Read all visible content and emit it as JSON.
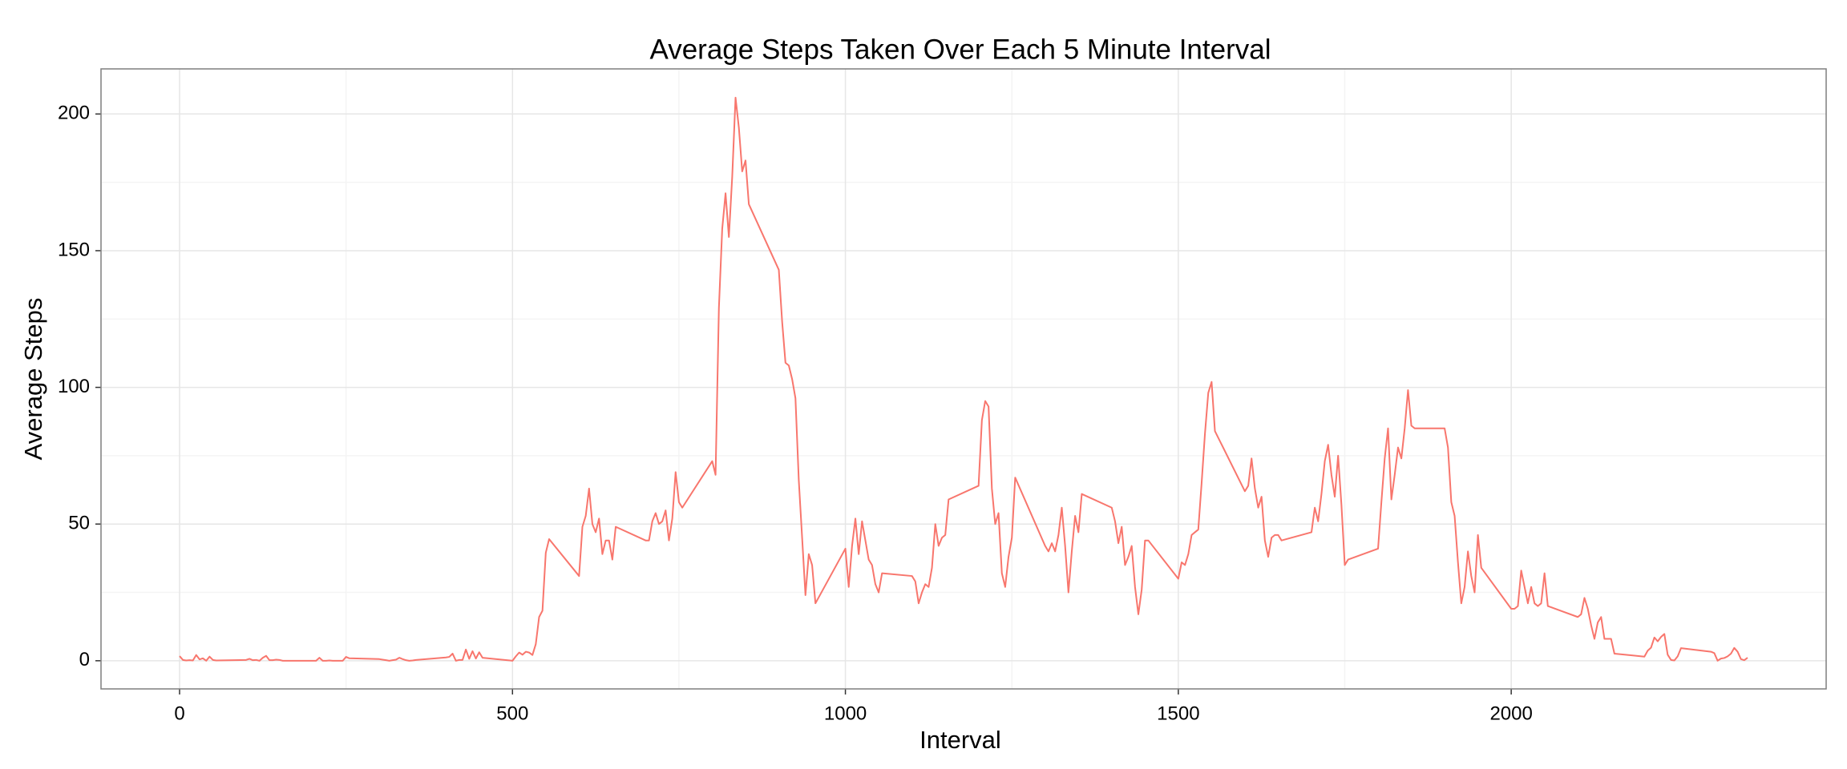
{
  "chart_data": {
    "type": "line",
    "title": "Average Steps Taken Over Each 5 Minute Interval",
    "xlabel": "Interval",
    "ylabel": "Average Steps",
    "x": [
      0,
      5,
      10,
      15,
      20,
      25,
      30,
      35,
      40,
      45,
      50,
      55,
      100,
      105,
      110,
      115,
      120,
      125,
      130,
      135,
      140,
      145,
      150,
      155,
      200,
      205,
      210,
      215,
      220,
      225,
      230,
      235,
      240,
      245,
      250,
      255,
      300,
      305,
      310,
      315,
      320,
      325,
      330,
      335,
      340,
      345,
      350,
      355,
      400,
      405,
      410,
      415,
      420,
      425,
      430,
      435,
      440,
      445,
      450,
      455,
      500,
      505,
      510,
      515,
      520,
      525,
      530,
      535,
      540,
      545,
      550,
      555,
      600,
      605,
      610,
      615,
      620,
      625,
      630,
      635,
      640,
      645,
      650,
      655,
      700,
      705,
      710,
      715,
      720,
      725,
      730,
      735,
      740,
      745,
      750,
      755,
      800,
      805,
      810,
      815,
      820,
      825,
      830,
      835,
      840,
      845,
      850,
      855,
      900,
      905,
      910,
      915,
      920,
      925,
      930,
      935,
      940,
      945,
      950,
      955,
      1000,
      1005,
      1010,
      1015,
      1020,
      1025,
      1030,
      1035,
      1040,
      1045,
      1050,
      1055,
      1100,
      1105,
      1110,
      1115,
      1120,
      1125,
      1130,
      1135,
      1140,
      1145,
      1150,
      1155,
      1200,
      1205,
      1210,
      1215,
      1220,
      1225,
      1230,
      1235,
      1240,
      1245,
      1250,
      1255,
      1300,
      1305,
      1310,
      1315,
      1320,
      1325,
      1330,
      1335,
      1340,
      1345,
      1350,
      1355,
      1400,
      1405,
      1410,
      1415,
      1420,
      1425,
      1430,
      1435,
      1440,
      1445,
      1450,
      1455,
      1500,
      1505,
      1510,
      1515,
      1520,
      1525,
      1530,
      1535,
      1540,
      1545,
      1550,
      1555,
      1600,
      1605,
      1610,
      1615,
      1620,
      1625,
      1630,
      1635,
      1640,
      1645,
      1650,
      1655,
      1700,
      1705,
      1710,
      1715,
      1720,
      1725,
      1730,
      1735,
      1740,
      1745,
      1750,
      1755,
      1800,
      1805,
      1810,
      1815,
      1820,
      1825,
      1830,
      1835,
      1840,
      1845,
      1850,
      1855,
      1900,
      1905,
      1910,
      1915,
      1920,
      1925,
      1930,
      1935,
      1940,
      1945,
      1950,
      1955,
      2000,
      2005,
      2010,
      2015,
      2020,
      2025,
      2030,
      2035,
      2040,
      2045,
      2050,
      2055,
      2100,
      2105,
      2110,
      2115,
      2120,
      2125,
      2130,
      2135,
      2140,
      2145,
      2150,
      2155,
      2200,
      2205,
      2210,
      2215,
      2220,
      2225,
      2230,
      2235,
      2240,
      2245,
      2250,
      2255,
      2300,
      2305,
      2310,
      2315,
      2320,
      2325,
      2330,
      2335,
      2340,
      2345,
      2350,
      2355
    ],
    "series": [
      {
        "name": "Average Steps",
        "color": "#F8766D",
        "values": [
          1.7,
          0.3,
          0.1,
          0.2,
          0.1,
          2.1,
          0.5,
          0.9,
          0,
          1.5,
          0.3,
          0.1,
          0.3,
          0.7,
          0.2,
          0.3,
          0,
          1.1,
          1.8,
          0.2,
          0.2,
          0.4,
          0.3,
          0,
          0,
          0,
          1.1,
          0,
          0,
          0.1,
          0,
          0,
          0,
          0,
          1.4,
          0.9,
          0.6,
          0.4,
          0.2,
          0,
          0.2,
          0.4,
          1.1,
          0.6,
          0.2,
          0,
          0.1,
          0.3,
          1.2,
          1.4,
          2.6,
          0,
          0.3,
          0.3,
          4.1,
          0.7,
          3.5,
          0.8,
          3.1,
          1.1,
          0,
          1.6,
          3,
          2.2,
          3.3,
          3,
          2.1,
          6.1,
          16,
          18.3,
          39.5,
          44.5,
          31,
          49,
          53,
          63,
          50,
          47,
          52,
          39,
          44,
          44,
          37,
          49,
          44,
          44,
          51,
          54,
          50,
          51,
          55,
          44,
          52,
          69,
          58,
          56,
          73,
          68,
          129,
          158,
          171,
          155,
          177,
          206,
          195,
          179,
          183,
          167,
          143,
          124,
          109,
          108,
          103,
          96,
          66,
          45,
          24,
          39,
          35,
          21,
          41,
          27,
          42,
          52,
          39,
          51,
          44,
          37,
          35,
          28,
          25,
          32,
          31,
          29,
          21,
          25,
          28,
          27,
          34,
          50,
          42,
          45,
          46,
          59,
          64,
          88,
          95,
          93,
          63,
          50,
          54,
          32,
          27,
          38,
          45,
          67,
          42,
          40,
          43,
          40,
          46,
          56,
          42,
          25,
          40,
          53,
          47,
          61,
          56,
          51,
          43,
          49,
          35,
          38,
          42,
          27,
          17,
          26,
          44,
          44,
          30,
          36,
          35,
          39,
          46,
          47,
          48,
          65,
          83,
          98,
          102,
          84,
          62,
          64,
          74,
          63,
          56,
          60,
          44,
          38,
          45,
          46,
          46,
          44,
          47,
          56,
          51,
          61,
          73,
          79,
          68,
          60,
          75,
          57,
          35,
          37,
          41,
          58,
          74,
          85,
          59,
          68,
          78,
          74,
          85,
          99,
          86,
          85,
          85,
          78,
          58,
          53,
          36,
          21,
          27,
          40,
          31,
          25,
          46,
          34,
          19,
          19,
          20,
          33,
          27,
          21,
          27,
          21,
          20,
          21,
          32,
          20,
          16,
          17,
          23,
          19,
          13,
          8,
          14,
          16,
          8,
          8,
          8,
          2.6,
          1.5,
          3.7,
          4.8,
          8.5,
          7.1,
          8.7,
          9.8,
          2.2,
          0.3,
          0.1,
          1.6,
          4.6,
          3.3,
          2.8,
          0,
          0.8,
          1,
          1.6,
          2.6,
          4.7,
          3.3,
          0.6,
          0.2,
          1.1
        ]
      }
    ],
    "xlim": [
      -118,
      2473
    ],
    "ylim": [
      -10.3,
      216.5
    ],
    "xticks": [
      0,
      500,
      1000,
      1500,
      2000
    ],
    "yticks": [
      0,
      50,
      100,
      150,
      200
    ],
    "grid": true
  }
}
